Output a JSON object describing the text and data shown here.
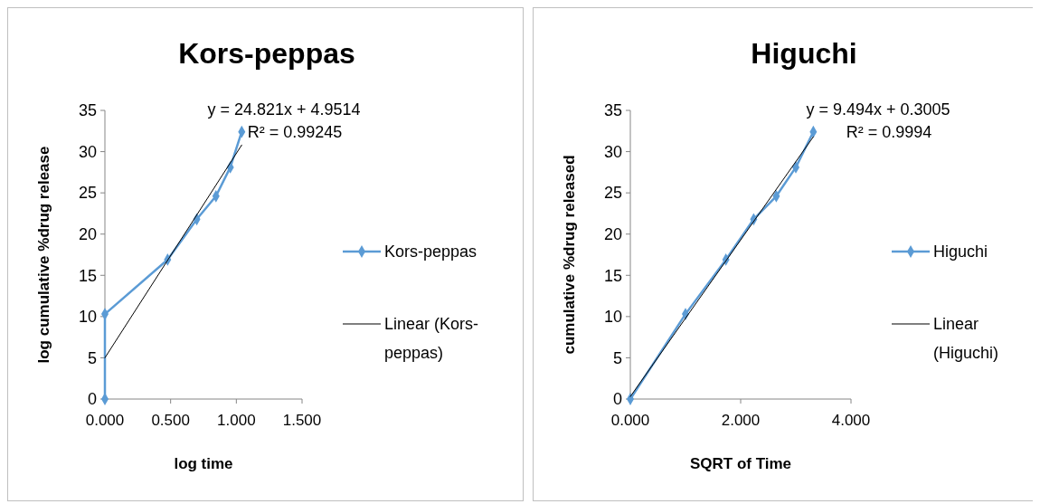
{
  "chart_data": [
    {
      "type": "line",
      "title": "Kors-peppas",
      "xlabel": "log time",
      "ylabel": "log cumulative %drug release",
      "xlim": [
        0,
        1.5
      ],
      "xticks": [
        {
          "value": 0,
          "label": "0.000"
        },
        {
          "value": 0.5,
          "label": "0.500"
        },
        {
          "value": 1,
          "label": "1.000"
        },
        {
          "value": 1.5,
          "label": "1.500"
        }
      ],
      "ylim": [
        0,
        35
      ],
      "yticks": [
        0,
        5,
        10,
        15,
        20,
        25,
        30,
        35
      ],
      "grid": false,
      "legend": "right",
      "line_style": "solid",
      "annotations": [
        "y = 24.821x + 4.9514",
        "R² = 0.99245"
      ],
      "series": [
        {
          "name": "Kors-peppas",
          "color": "#5b9bd5",
          "marker": "diamond",
          "x": [
            0,
            0,
            0.477,
            0.699,
            0.845,
            0.954,
            1.041
          ],
          "values": [
            0,
            10.3,
            16.9,
            21.8,
            24.6,
            28.1,
            32.4
          ]
        },
        {
          "name": "Linear (Kors-peppas)",
          "color": "#000000",
          "marker": "none",
          "x": [
            0,
            1.041
          ],
          "values": [
            5,
            30.8
          ]
        }
      ]
    },
    {
      "type": "line",
      "title": "Higuchi",
      "xlabel": "SQRT of Time",
      "ylabel": "cumulative %drug released",
      "xlim": [
        0,
        4
      ],
      "xticks": [
        {
          "value": 0,
          "label": "0.000"
        },
        {
          "value": 2,
          "label": "2.000"
        },
        {
          "value": 4,
          "label": "4.000"
        }
      ],
      "ylim": [
        0,
        35
      ],
      "yticks": [
        0,
        5,
        10,
        15,
        20,
        25,
        30,
        35
      ],
      "grid": false,
      "legend": "right",
      "line_style": "solid",
      "annotations": [
        "y = 9.494x + 0.3005",
        "R² = 0.9994"
      ],
      "series": [
        {
          "name": "Higuchi",
          "color": "#5b9bd5",
          "marker": "diamond",
          "x": [
            0,
            1,
            1.732,
            2.236,
            2.646,
            3,
            3.317
          ],
          "values": [
            0,
            10.3,
            16.9,
            21.8,
            24.6,
            28.1,
            32.4
          ]
        },
        {
          "name": "Linear (Higuchi)",
          "color": "#000000",
          "marker": "none",
          "x": [
            0,
            3.317
          ],
          "values": [
            0.3,
            31.8
          ]
        }
      ]
    }
  ]
}
